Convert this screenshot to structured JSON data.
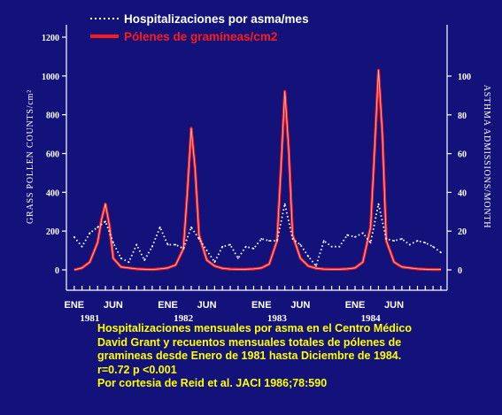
{
  "chart_data": {
    "type": "line",
    "legend": {
      "placement": "top",
      "entries": [
        {
          "label": "Hospitalizaciones por asma/mes",
          "style": "dotted",
          "color": "#ffffff"
        },
        {
          "label": "Pólenes de gramíneas/cm2",
          "style": "solid",
          "color": "#ff1a1a"
        }
      ]
    },
    "ylabel_left": "GRASS POLLEN COUNTS/cm²",
    "ylabel_right": "ASTHMA ADMISSIONS/MONTH",
    "y_left_ticks": [
      "0",
      "200",
      "400",
      "600",
      "800",
      "1000",
      "1200"
    ],
    "y_right_ticks": [
      "0",
      "20",
      "40",
      "60",
      "80",
      "100"
    ],
    "y_left_range": [
      0,
      1200
    ],
    "y_right_range": [
      0,
      100
    ],
    "x_month_labels": [
      {
        "label": "ENE",
        "month": 1
      },
      {
        "label": "JUN",
        "month": 6
      },
      {
        "label": "ENE",
        "month": 13
      },
      {
        "label": "JUN",
        "month": 18
      },
      {
        "label": "ENE",
        "month": 25
      },
      {
        "label": "JUN",
        "month": 30
      },
      {
        "label": "ENE",
        "month": 37
      },
      {
        "label": "JUN",
        "month": 42
      }
    ],
    "x_year_labels": [
      {
        "label": "1981",
        "month": 3
      },
      {
        "label": "1982",
        "month": 15
      },
      {
        "label": "1983",
        "month": 27
      },
      {
        "label": "1984",
        "month": 39
      }
    ],
    "series": [
      {
        "name": "Pólenes de gramíneas/cm2",
        "axis": "left",
        "color": "#ff1a1a",
        "points": [
          [
            1,
            0
          ],
          [
            2,
            10
          ],
          [
            3,
            40
          ],
          [
            4,
            140
          ],
          [
            4.5,
            260
          ],
          [
            5,
            340
          ],
          [
            5.5,
            230
          ],
          [
            6,
            60
          ],
          [
            7,
            15
          ],
          [
            8,
            10
          ],
          [
            9,
            5
          ],
          [
            10,
            3
          ],
          [
            11,
            2
          ],
          [
            12,
            5
          ],
          [
            13,
            10
          ],
          [
            14,
            25
          ],
          [
            15,
            110
          ],
          [
            15.5,
            400
          ],
          [
            16,
            730
          ],
          [
            16.5,
            520
          ],
          [
            17,
            180
          ],
          [
            18,
            50
          ],
          [
            19,
            20
          ],
          [
            20,
            8
          ],
          [
            21,
            4
          ],
          [
            22,
            3
          ],
          [
            23,
            3
          ],
          [
            24,
            5
          ],
          [
            25,
            10
          ],
          [
            26,
            30
          ],
          [
            27,
            150
          ],
          [
            27.5,
            520
          ],
          [
            28,
            920
          ],
          [
            28.5,
            620
          ],
          [
            29,
            180
          ],
          [
            30,
            60
          ],
          [
            31,
            20
          ],
          [
            32,
            8
          ],
          [
            33,
            4
          ],
          [
            34,
            3
          ],
          [
            35,
            3
          ],
          [
            36,
            5
          ],
          [
            37,
            10
          ],
          [
            38,
            40
          ],
          [
            39,
            220
          ],
          [
            39.5,
            620
          ],
          [
            40,
            1030
          ],
          [
            40.5,
            700
          ],
          [
            41,
            150
          ],
          [
            42,
            40
          ],
          [
            43,
            15
          ],
          [
            44,
            10
          ],
          [
            45,
            5
          ],
          [
            46,
            3
          ],
          [
            47,
            2
          ],
          [
            48,
            2
          ]
        ]
      },
      {
        "name": "Hospitalizaciones por asma/mes",
        "axis": "right",
        "color": "#ffffff",
        "points": [
          [
            1,
            17
          ],
          [
            2,
            12
          ],
          [
            3,
            19
          ],
          [
            4,
            22
          ],
          [
            5,
            25
          ],
          [
            6,
            14
          ],
          [
            7,
            6
          ],
          [
            8,
            4
          ],
          [
            9,
            13
          ],
          [
            10,
            5
          ],
          [
            11,
            12
          ],
          [
            12,
            22
          ],
          [
            13,
            13
          ],
          [
            14,
            13
          ],
          [
            15,
            11
          ],
          [
            16,
            22
          ],
          [
            17,
            16
          ],
          [
            18,
            10
          ],
          [
            19,
            4
          ],
          [
            20,
            12
          ],
          [
            21,
            13
          ],
          [
            22,
            6
          ],
          [
            23,
            12
          ],
          [
            24,
            11
          ],
          [
            25,
            16
          ],
          [
            26,
            15
          ],
          [
            27,
            15
          ],
          [
            28,
            34
          ],
          [
            29,
            16
          ],
          [
            30,
            13
          ],
          [
            31,
            7
          ],
          [
            32,
            2
          ],
          [
            33,
            15
          ],
          [
            34,
            12
          ],
          [
            35,
            12
          ],
          [
            36,
            18
          ],
          [
            37,
            17
          ],
          [
            38,
            19
          ],
          [
            39,
            14
          ],
          [
            40,
            34
          ],
          [
            41,
            16
          ],
          [
            42,
            15
          ],
          [
            43,
            16
          ],
          [
            44,
            13
          ],
          [
            45,
            15
          ],
          [
            46,
            14
          ],
          [
            47,
            12
          ],
          [
            48,
            9
          ]
        ]
      }
    ]
  },
  "caption": {
    "line1": "Hospitalizaciones mensuales por asma en el Centro Médico",
    "line2": "David Grant y recuentos mensuales totales de pólenes de",
    "line3": "gramineas desde Enero de 1981 hasta Diciembre de 1984.",
    "line4": "r=0.72 p <0.001",
    "line5": "Por cortesia de Reid et al. JACI 1986;78:590"
  }
}
